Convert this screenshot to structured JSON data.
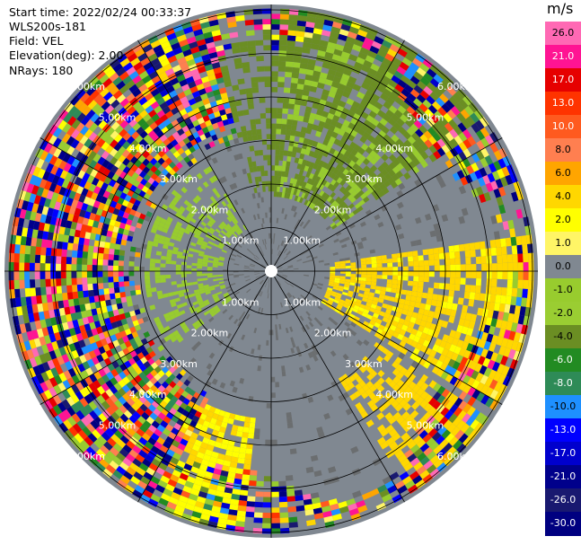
{
  "header": {
    "start_time": "Start time: 2022/02/24 00:33:37",
    "instrument": "WLS200s-181",
    "field": "Field: VEL",
    "elevation": "Elevation(deg): 2.00",
    "nrays": "NRays: 180"
  },
  "range_rings_km": [
    1,
    2,
    3,
    4,
    5,
    6
  ],
  "ring_labels": [
    "1.00km",
    "2.00km",
    "3.00km",
    "4.00km",
    "5.00km",
    "6.00km"
  ],
  "spokes_deg": [
    0,
    30,
    60,
    90,
    120,
    150,
    180,
    210,
    240,
    270,
    300,
    330
  ],
  "colorbar": {
    "unit": "m/s",
    "labels": [
      "26.0",
      "21.0",
      "17.0",
      "13.0",
      "10.0",
      "8.0",
      "6.0",
      "4.0",
      "2.0",
      "1.0",
      "0.0",
      "-1.0",
      "-2.0",
      "-4.0",
      "-6.0",
      "-8.0",
      "-10.0",
      "-13.0",
      "-17.0",
      "-21.0",
      "-26.0",
      "-30.0"
    ],
    "colors": [
      "#ff69b4",
      "#ff1493",
      "#e60000",
      "#ff3300",
      "#ff5a1f",
      "#ff7f50",
      "#ffa500",
      "#ffd700",
      "#ffff00",
      "#fff566",
      "#808891",
      "#98cc2e",
      "#9acd32",
      "#6b8e23",
      "#228b22",
      "#2e8b57",
      "#1e90ff",
      "#0000ff",
      "#0000cd",
      "#00008b",
      "#191970",
      "#000080"
    ],
    "label_colors": [
      "#000",
      "#fff",
      "#fff",
      "#fff",
      "#fff",
      "#000",
      "#000",
      "#000",
      "#000",
      "#000",
      "#000",
      "#000",
      "#000",
      "#000",
      "#fff",
      "#fff",
      "#000",
      "#fff",
      "#fff",
      "#fff",
      "#fff",
      "#fff"
    ]
  }
}
